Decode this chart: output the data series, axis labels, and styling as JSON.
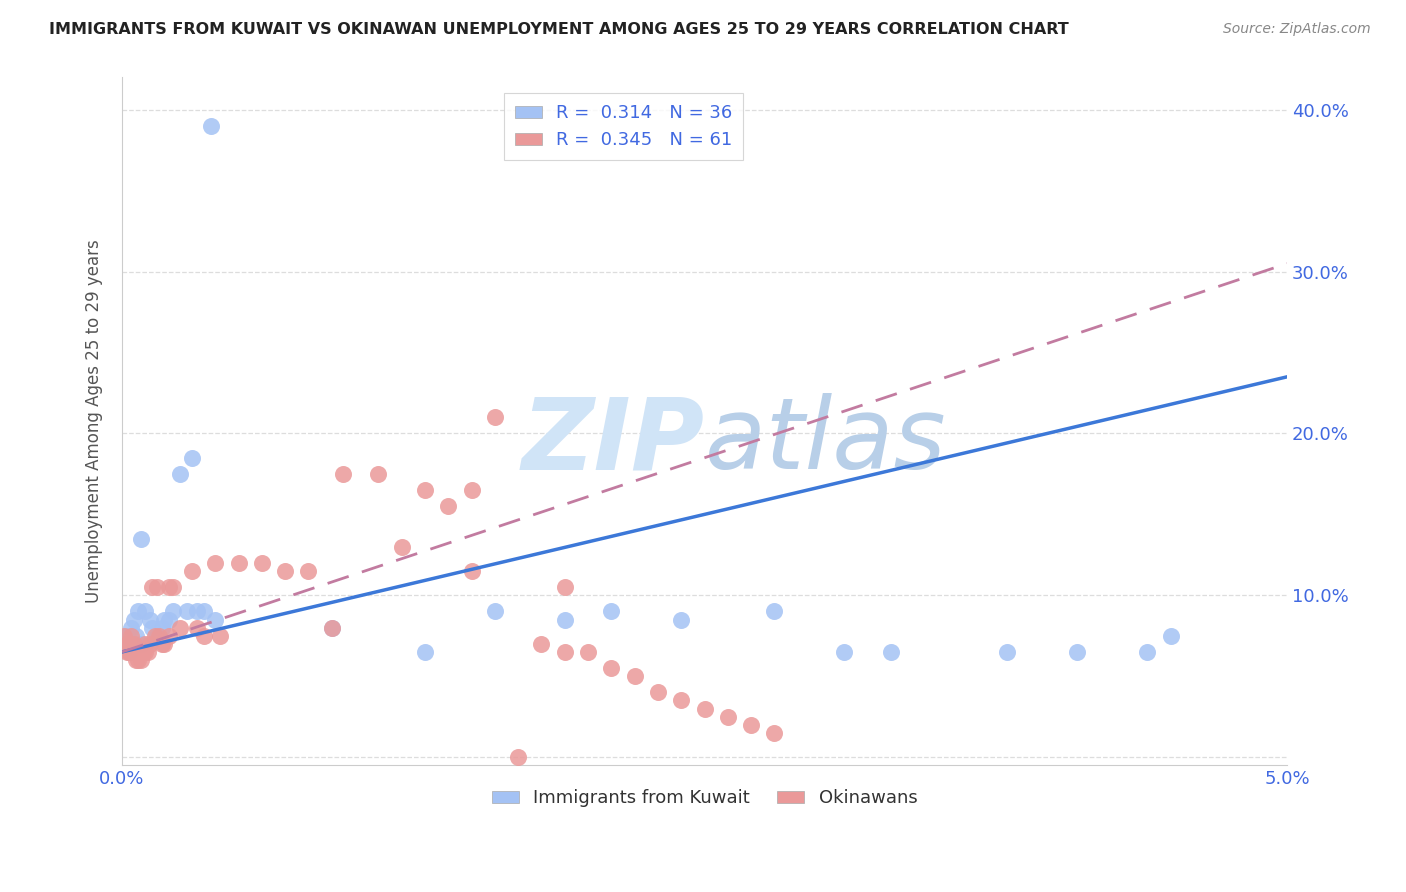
{
  "title": "IMMIGRANTS FROM KUWAIT VS OKINAWAN UNEMPLOYMENT AMONG AGES 25 TO 29 YEARS CORRELATION CHART",
  "source": "Source: ZipAtlas.com",
  "ylabel": "Unemployment Among Ages 25 to 29 years",
  "xlim": [
    0.0,
    0.05
  ],
  "ylim": [
    -0.005,
    0.42
  ],
  "blue_R": 0.314,
  "blue_N": 36,
  "pink_R": 0.345,
  "pink_N": 61,
  "blue_color": "#a4c2f4",
  "pink_color": "#ea9999",
  "blue_line_color": "#3c78d8",
  "pink_line_color": "#c27ba0",
  "watermark_color": "#d0e4f7",
  "legend_label_blue": "Immigrants from Kuwait",
  "legend_label_pink": "Okinawans",
  "blue_line_x0": 0.0,
  "blue_line_x1": 0.05,
  "blue_line_y0": 0.065,
  "blue_line_y1": 0.235,
  "pink_line_x0": 0.0,
  "pink_line_x1": 0.05,
  "pink_line_y0": 0.065,
  "pink_line_y1": 0.305,
  "bg_color": "#ffffff",
  "grid_color": "#dddddd",
  "title_color": "#222222",
  "axis_label_color": "#4169e1",
  "blue_scatter_x": [
    0.0038,
    0.0005,
    0.0003,
    0.0008,
    0.0004,
    0.0007,
    0.0002,
    0.0006,
    0.001,
    0.0012,
    0.0008,
    0.0015,
    0.002,
    0.0025,
    0.003,
    0.0022,
    0.0017,
    0.0013,
    0.0035,
    0.004,
    0.0018,
    0.0028,
    0.0032,
    0.009,
    0.013,
    0.016,
    0.019,
    0.021,
    0.024,
    0.028,
    0.031,
    0.033,
    0.038,
    0.041,
    0.045,
    0.044
  ],
  "blue_scatter_y": [
    0.39,
    0.085,
    0.065,
    0.135,
    0.08,
    0.09,
    0.075,
    0.075,
    0.09,
    0.085,
    0.07,
    0.075,
    0.085,
    0.175,
    0.185,
    0.09,
    0.08,
    0.08,
    0.09,
    0.085,
    0.085,
    0.09,
    0.09,
    0.08,
    0.065,
    0.09,
    0.085,
    0.09,
    0.085,
    0.09,
    0.065,
    0.065,
    0.065,
    0.065,
    0.075,
    0.065
  ],
  "pink_scatter_x": [
    0.0001,
    0.0002,
    0.0002,
    0.0003,
    0.0003,
    0.0004,
    0.0004,
    0.0005,
    0.0005,
    0.0006,
    0.0006,
    0.0007,
    0.0007,
    0.0008,
    0.0008,
    0.0009,
    0.001,
    0.001,
    0.0011,
    0.0012,
    0.0013,
    0.0014,
    0.0015,
    0.0016,
    0.0017,
    0.0018,
    0.002,
    0.002,
    0.0022,
    0.0025,
    0.003,
    0.0032,
    0.0035,
    0.004,
    0.0042,
    0.005,
    0.006,
    0.007,
    0.008,
    0.009,
    0.0095,
    0.011,
    0.012,
    0.013,
    0.014,
    0.015,
    0.016,
    0.017,
    0.018,
    0.019,
    0.02,
    0.021,
    0.022,
    0.023,
    0.024,
    0.025,
    0.026,
    0.027,
    0.028,
    0.015,
    0.019
  ],
  "pink_scatter_y": [
    0.075,
    0.07,
    0.065,
    0.07,
    0.065,
    0.075,
    0.065,
    0.07,
    0.065,
    0.065,
    0.06,
    0.065,
    0.06,
    0.065,
    0.06,
    0.065,
    0.065,
    0.07,
    0.065,
    0.07,
    0.105,
    0.075,
    0.105,
    0.075,
    0.07,
    0.07,
    0.075,
    0.105,
    0.105,
    0.08,
    0.115,
    0.08,
    0.075,
    0.12,
    0.075,
    0.12,
    0.12,
    0.115,
    0.115,
    0.08,
    0.175,
    0.175,
    0.13,
    0.165,
    0.155,
    0.165,
    0.21,
    0.0,
    0.07,
    0.065,
    0.065,
    0.055,
    0.05,
    0.04,
    0.035,
    0.03,
    0.025,
    0.02,
    0.015,
    0.115,
    0.105
  ]
}
